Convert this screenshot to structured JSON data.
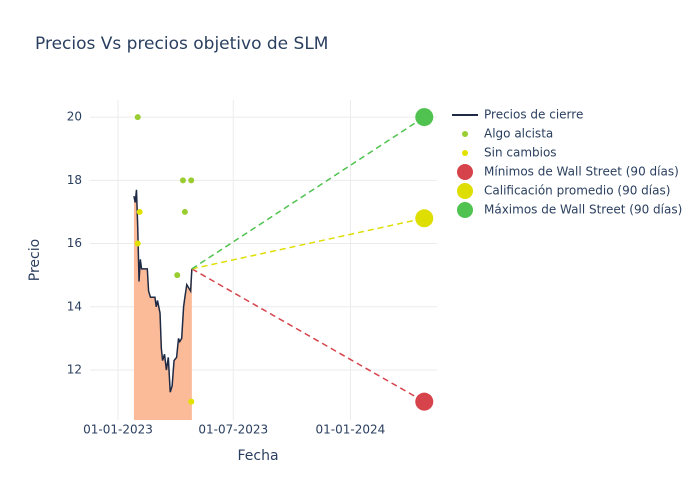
{
  "chart_data": {
    "type": "line",
    "title": "Precios Vs precios objetivo de SLM",
    "x_label": "Fecha",
    "y_label": "Precio",
    "xlim": [
      "2022-11-18",
      "2024-05-16"
    ],
    "xticks": [
      {
        "value": "2023-01-01",
        "label": "01-01-2023"
      },
      {
        "value": "2023-07-01",
        "label": "01-07-2023"
      },
      {
        "value": "2024-01-01",
        "label": "01-01-2024"
      }
    ],
    "ylim": [
      10.42,
      20.54
    ],
    "yticks": [
      12,
      14,
      16,
      18,
      20
    ],
    "grid": true,
    "series": [
      {
        "name": "Precios de cierre",
        "color": "#1f2a44",
        "fill": "#fbbb98",
        "mode": "lines",
        "x": [
          "2023-01-26",
          "2023-01-28",
          "2023-01-30",
          "2023-02-01",
          "2023-02-03",
          "2023-02-05",
          "2023-02-07",
          "2023-02-16",
          "2023-02-18",
          "2023-02-21",
          "2023-02-28",
          "2023-03-02",
          "2023-03-04",
          "2023-03-08",
          "2023-03-10",
          "2023-03-12",
          "2023-03-15",
          "2023-03-18",
          "2023-03-21",
          "2023-03-24",
          "2023-03-27",
          "2023-03-30",
          "2023-04-03",
          "2023-04-06",
          "2023-04-08",
          "2023-04-11",
          "2023-04-14",
          "2023-04-16",
          "2023-04-19",
          "2023-04-22",
          "2023-04-25",
          "2023-04-27"
        ],
        "values": [
          17.5,
          17.3,
          17.7,
          16.5,
          14.8,
          15.5,
          15.2,
          15.2,
          14.5,
          14.3,
          14.3,
          14.0,
          14.2,
          13.8,
          12.7,
          12.3,
          12.5,
          12.0,
          12.4,
          11.3,
          11.5,
          12.3,
          12.4,
          13.0,
          12.9,
          13.0,
          14.0,
          14.3,
          14.7,
          14.6,
          14.5,
          15.2
        ]
      },
      {
        "name": "Algo alcista",
        "color": "#9acd32",
        "mode": "markers",
        "x": [
          "2023-02-01",
          "2023-04-04",
          "2023-04-13",
          "2023-04-16",
          "2023-04-26"
        ],
        "values": [
          20,
          15,
          18,
          17,
          18
        ]
      },
      {
        "name": "Sin cambios",
        "color": "#e2e200",
        "mode": "markers",
        "x": [
          "2023-02-01",
          "2023-02-04",
          "2023-04-26"
        ],
        "values": [
          16,
          17,
          11
        ]
      },
      {
        "name": "Mínimos de Wall Street (90 días)",
        "color": "#d6434b",
        "mode": "target",
        "x": [
          "2024-04-26"
        ],
        "values": [
          11
        ]
      },
      {
        "name": "Calificación promedio (90 días)",
        "color": "#dede00",
        "mode": "target",
        "x": [
          "2024-04-26"
        ],
        "values": [
          16.8
        ]
      },
      {
        "name": "Máximos de Wall Street (90 días)",
        "color": "#4fc24f",
        "mode": "target",
        "x": [
          "2024-04-26"
        ],
        "values": [
          20
        ]
      }
    ]
  }
}
